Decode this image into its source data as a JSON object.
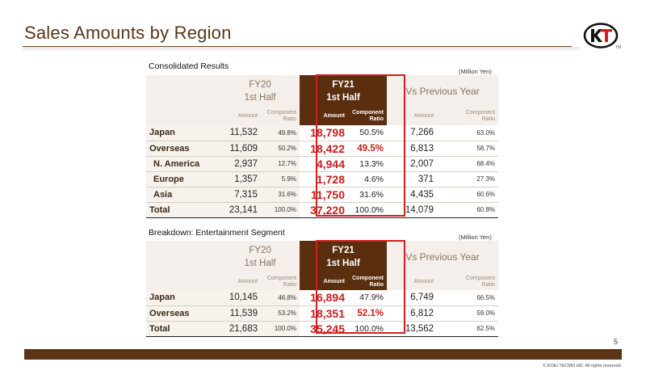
{
  "slide": {
    "title": "Sales Amounts by Region",
    "page_number": "5",
    "copyright": "© KOEI TECMO HD. All rights reserved.",
    "logo_tm": "TM",
    "colors": {
      "brand_brown": "#5a2e0f",
      "highlight_red": "#d0201f",
      "header_band": "#f4efea"
    }
  },
  "headers": {
    "fy20": "FY20",
    "first_half": "1st Half",
    "fy21": "FY21",
    "vs_prev": "Vs Previous Year",
    "amount": "Amount",
    "component": "Component",
    "ratio": "Ratio"
  },
  "consolidated": {
    "title": "Consolidated Results",
    "unit": "(Million Yen)",
    "rows": [
      {
        "label": "Japan",
        "fy20_amt": "11,532",
        "fy20_pct": "49.8%",
        "fy21_amt": "18,798",
        "fy21_pct": "50.5%",
        "vs_amt": "7,266",
        "vs_pct": "63.0%"
      },
      {
        "label": "Overseas",
        "fy20_amt": "11,609",
        "fy20_pct": "50.2%",
        "fy21_amt": "18,422",
        "fy21_pct": "49.5%",
        "vs_amt": "6,813",
        "vs_pct": "58.7%"
      },
      {
        "label": "N. America",
        "fy20_amt": "2,937",
        "fy20_pct": "12.7%",
        "fy21_amt": "4,944",
        "fy21_pct": "13.3%",
        "vs_amt": "2,007",
        "vs_pct": "68.4%"
      },
      {
        "label": "Europe",
        "fy20_amt": "1,357",
        "fy20_pct": "5.9%",
        "fy21_amt": "1,728",
        "fy21_pct": "4.6%",
        "vs_amt": "371",
        "vs_pct": "27.3%"
      },
      {
        "label": "Asia",
        "fy20_amt": "7,315",
        "fy20_pct": "31.6%",
        "fy21_amt": "11,750",
        "fy21_pct": "31.6%",
        "vs_amt": "4,435",
        "vs_pct": "60.6%"
      },
      {
        "label": "Total",
        "fy20_amt": "23,141",
        "fy20_pct": "100.0%",
        "fy21_amt": "37,220",
        "fy21_pct": "100.0%",
        "vs_amt": "14,079",
        "vs_pct": "60.8%"
      }
    ]
  },
  "entertainment": {
    "title": "Breakdown: Entertainment Segment",
    "unit": "(Million Yen)",
    "rows": [
      {
        "label": "Japan",
        "fy20_amt": "10,145",
        "fy20_pct": "46.8%",
        "fy21_amt": "16,894",
        "fy21_pct": "47.9%",
        "vs_amt": "6,749",
        "vs_pct": "66.5%"
      },
      {
        "label": "Overseas",
        "fy20_amt": "11,539",
        "fy20_pct": "53.2%",
        "fy21_amt": "18,351",
        "fy21_pct": "52.1%",
        "vs_amt": "6,812",
        "vs_pct": "59.0%"
      },
      {
        "label": "Total",
        "fy20_amt": "21,683",
        "fy20_pct": "100.0%",
        "fy21_amt": "35,245",
        "fy21_pct": "100.0%",
        "vs_amt": "13,562",
        "vs_pct": "62.5%"
      }
    ]
  }
}
